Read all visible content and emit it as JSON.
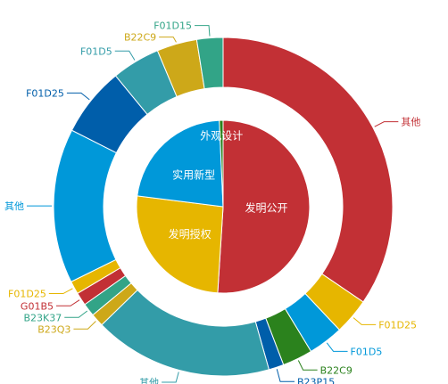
{
  "chart_data": {
    "type": "pie",
    "title": "",
    "inner": {
      "slices": [
        {
          "label": "发明公开",
          "value": 51.0,
          "color": "#c23035"
        },
        {
          "label": "发明授权",
          "value": 26.0,
          "color": "#e6b600"
        },
        {
          "label": "实用新型",
          "value": 22.3,
          "color": "#0098d9"
        },
        {
          "label": "外观设计",
          "value": 0.7,
          "color": "#2b821d"
        }
      ]
    },
    "outer": {
      "slices": [
        {
          "label": "其他",
          "value": 36.0,
          "color": "#c23035",
          "label_color": "#c23035"
        },
        {
          "label": "F01D25",
          "value": 3.6,
          "color": "#e6b600",
          "label_color": "#e6b600"
        },
        {
          "label": "F01D5",
          "value": 3.5,
          "color": "#0098d9",
          "label_color": "#0098d9"
        },
        {
          "label": "B22C9",
          "value": 3.0,
          "color": "#2b821d",
          "label_color": "#2b821d"
        },
        {
          "label": "B23P15",
          "value": 1.5,
          "color": "#005eaa",
          "label_color": "#005eaa"
        },
        {
          "label": "其他",
          "value": 17.8,
          "color": "#339ca8",
          "label_color": "#339ca8"
        },
        {
          "label": "B23Q3",
          "value": 1.3,
          "color": "#cda819",
          "label_color": "#cda819"
        },
        {
          "label": "B23K37",
          "value": 1.3,
          "color": "#32a487",
          "label_color": "#32a487"
        },
        {
          "label": "G01B5",
          "value": 1.3,
          "color": "#c23035",
          "label_color": "#c23035"
        },
        {
          "label": "F01D25",
          "value": 1.3,
          "color": "#e6b600",
          "label_color": "#e6b600"
        },
        {
          "label": "其他",
          "value": 15.4,
          "color": "#0098d9",
          "label_color": "#0098d9"
        },
        {
          "label": "F01D25",
          "value": 6.9,
          "color": "#005eaa",
          "label_color": "#005eaa"
        },
        {
          "label": "F01D5",
          "value": 4.8,
          "color": "#339ca8",
          "label_color": "#339ca8"
        },
        {
          "label": "B22C9",
          "value": 4.0,
          "color": "#cda819",
          "label_color": "#cda819"
        },
        {
          "label": "F01D15",
          "value": 2.6,
          "color": "#32a487",
          "label_color": "#32a487"
        }
      ]
    }
  }
}
